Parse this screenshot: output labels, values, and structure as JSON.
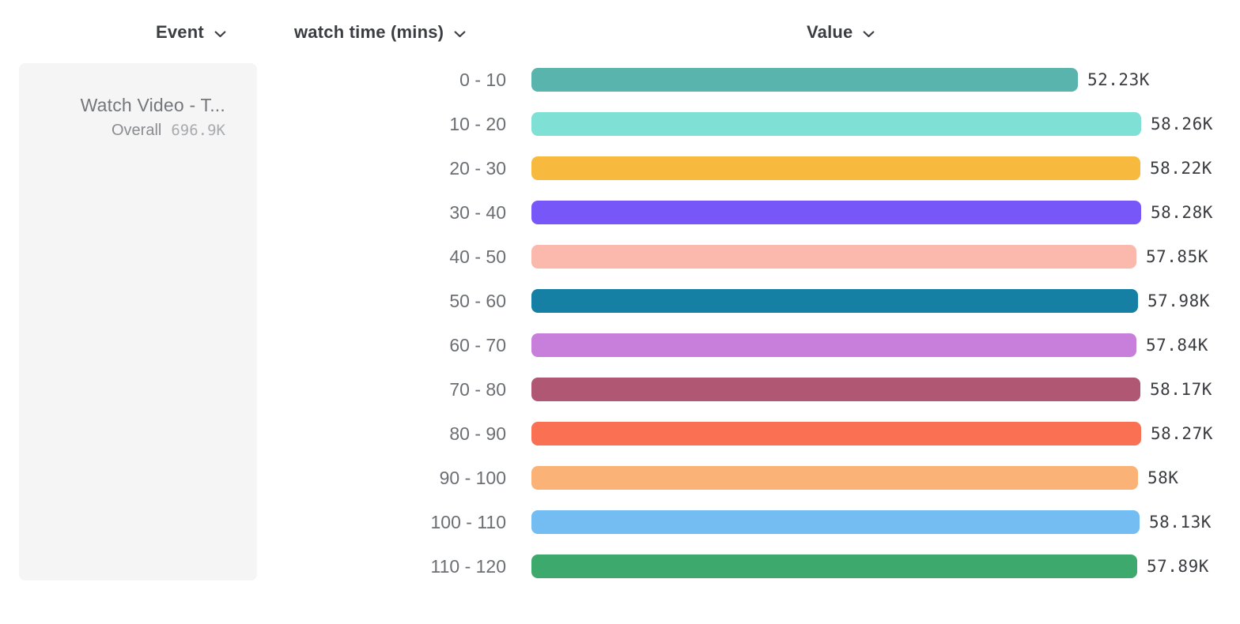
{
  "columns": {
    "event": "Event",
    "breakdown": "watch time (mins)",
    "value": "Value"
  },
  "event_card": {
    "name": "Watch Video - T...",
    "overall_label": "Overall",
    "overall_value": "696.9K"
  },
  "chart_data": {
    "type": "bar",
    "orientation": "horizontal",
    "title": "",
    "xlabel": "Value",
    "ylabel": "watch time (mins)",
    "grid": false,
    "legend": false,
    "xlim": [
      0,
      58280
    ],
    "categories": [
      "0 - 10",
      "10 - 20",
      "20 - 30",
      "30 - 40",
      "40 - 50",
      "50 - 60",
      "60 - 70",
      "70 - 80",
      "80 - 90",
      "90 - 100",
      "100 - 110",
      "110 - 120"
    ],
    "values": [
      52230,
      58260,
      58220,
      58280,
      57850,
      57980,
      57840,
      58170,
      58270,
      58000,
      58130,
      57890
    ],
    "value_labels": [
      "52.23K",
      "58.26K",
      "58.22K",
      "58.28K",
      "57.85K",
      "57.98K",
      "57.84K",
      "58.17K",
      "58.27K",
      "58K",
      "58.13K",
      "57.89K"
    ],
    "bar_colors": [
      "#58B4AC",
      "#7FE0D5",
      "#F7BA3E",
      "#7857F8",
      "#FBB9AD",
      "#1580A4",
      "#C77FDB",
      "#B05873",
      "#FA7052",
      "#FBB276",
      "#73BDF3",
      "#3EA96C"
    ]
  }
}
